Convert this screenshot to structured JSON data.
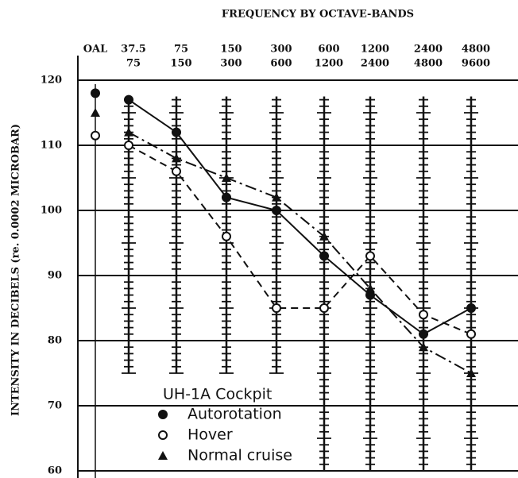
{
  "chart_data": {
    "type": "line",
    "title": "FREQUENCY BY OCTAVE-BANDS",
    "y_label": "INTENSITY IN DECIBELS (re. 0.0002 MICROBAR)",
    "legend_title": "UH-1A Cockpit",
    "categories": [
      [
        "OAL"
      ],
      [
        "37.5",
        "75"
      ],
      [
        "75",
        "150"
      ],
      [
        "150",
        "300"
      ],
      [
        "300",
        "600"
      ],
      [
        "600",
        "1200"
      ],
      [
        "1200",
        "2400"
      ],
      [
        "2400",
        "4800"
      ],
      [
        "4800",
        "9600"
      ]
    ],
    "series": [
      {
        "name": "Autorotation",
        "color": "#111111",
        "marker": "filled-circle",
        "dash": "solid",
        "values": [
          118,
          117,
          112,
          102,
          100,
          93,
          87,
          81,
          85
        ]
      },
      {
        "name": "Hover",
        "color": "#111111",
        "marker": "open-circle",
        "dash": "dashed",
        "values": [
          111.5,
          110,
          106,
          96,
          85,
          85,
          93,
          84,
          81
        ]
      },
      {
        "name": "Normal cruise",
        "color": "#111111",
        "marker": "triangle",
        "dash": "dashdot",
        "values": [
          115,
          112,
          108,
          105,
          102,
          96,
          88,
          79,
          75
        ]
      }
    ],
    "ylim": [
      60,
      120
    ],
    "yticks": [
      60,
      70,
      80,
      90,
      100,
      110,
      120
    ],
    "grid": true
  }
}
